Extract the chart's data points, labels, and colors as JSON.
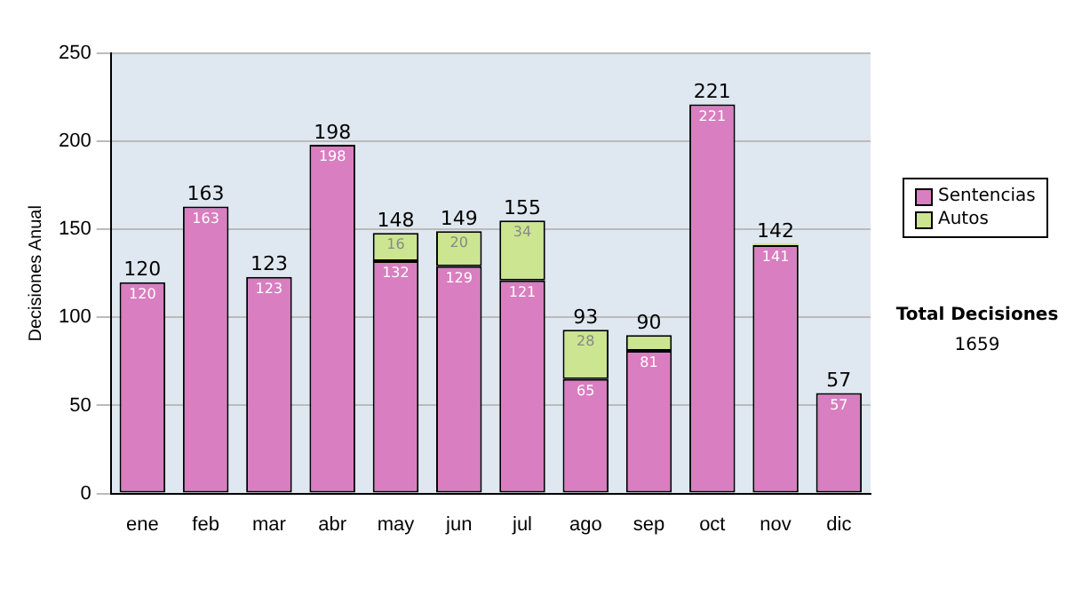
{
  "chart_data": {
    "type": "bar",
    "stacked": true,
    "ylabel": "Decisiones Anual",
    "categories": [
      "ene",
      "feb",
      "mar",
      "abr",
      "may",
      "jun",
      "jul",
      "ago",
      "sep",
      "oct",
      "nov",
      "dic"
    ],
    "series": [
      {
        "name": "Sentencias",
        "color": "#d97ec0",
        "values": [
          120,
          163,
          123,
          198,
          132,
          129,
          121,
          65,
          81,
          221,
          141,
          57
        ],
        "value_labels": [
          "120",
          "163",
          "123",
          "198",
          "132",
          "129",
          "121",
          "65",
          "81",
          "221",
          "141",
          "57"
        ]
      },
      {
        "name": "Autos",
        "color": "#cce590",
        "values": [
          0,
          0,
          0,
          0,
          16,
          20,
          34,
          28,
          9,
          0,
          1,
          0
        ],
        "value_labels": [
          null,
          null,
          null,
          null,
          "16",
          "20",
          "34",
          "28",
          null,
          null,
          null,
          null
        ]
      }
    ],
    "totals": [
      "120",
      "163",
      "123",
      "198",
      "148",
      "149",
      "155",
      "93",
      "90",
      "221",
      "142",
      "57"
    ],
    "ylim": [
      0,
      250
    ],
    "yticks": [
      0,
      50,
      100,
      150,
      200,
      250
    ],
    "grid": "y",
    "legend": "right",
    "annotations": [
      "Total Decisiones",
      "1659"
    ]
  }
}
